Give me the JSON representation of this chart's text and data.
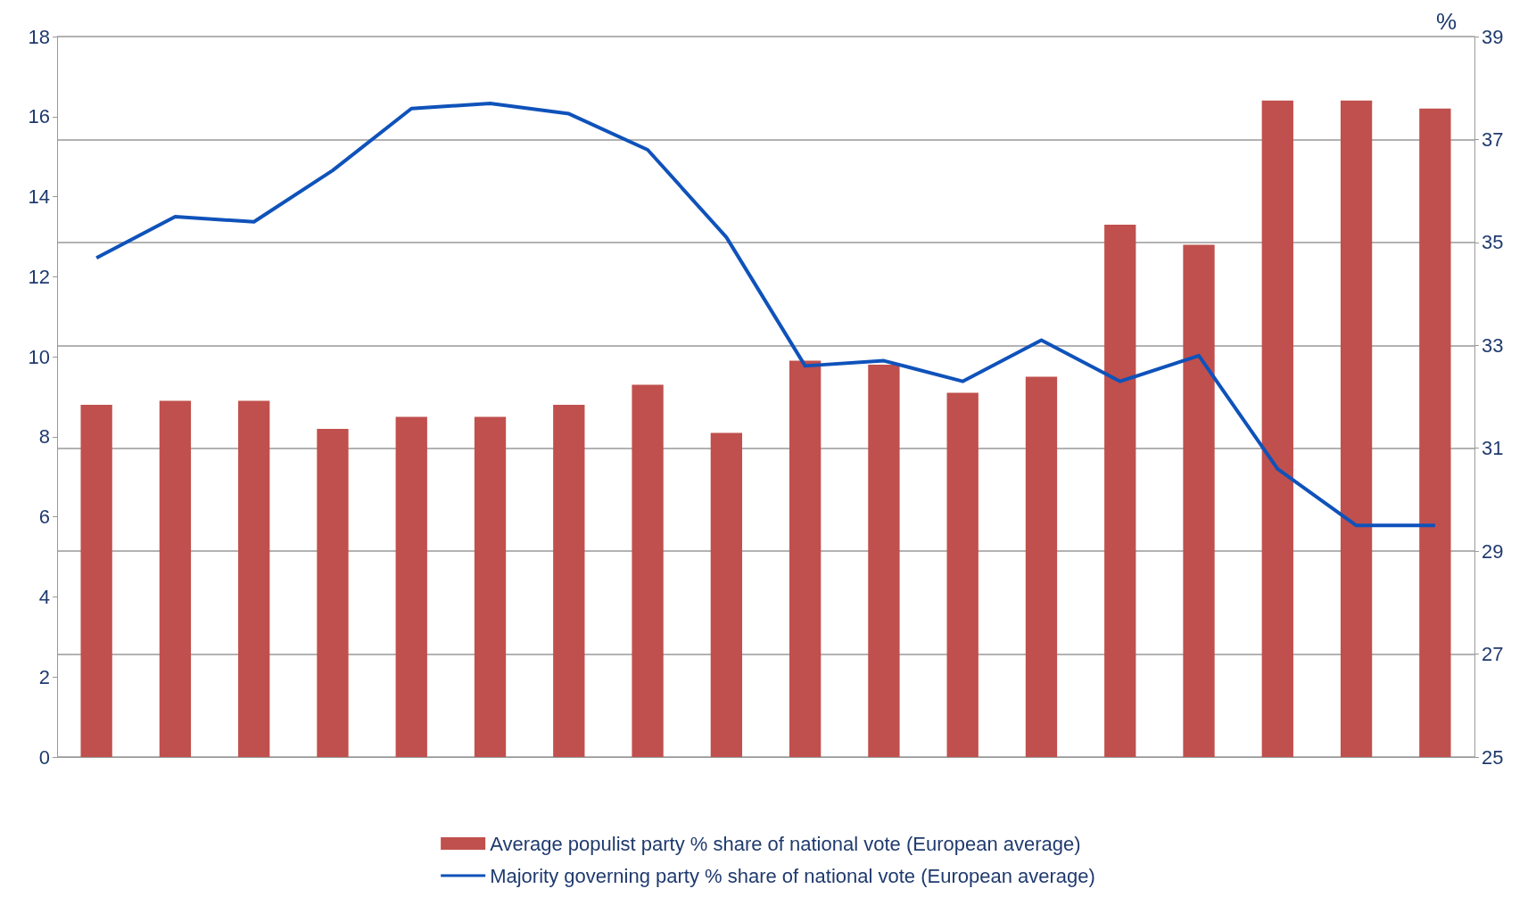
{
  "chart_data": {
    "type": "bar",
    "y2label": "%",
    "categories": [
      null,
      null,
      null,
      null,
      null,
      null,
      null,
      null,
      null,
      null,
      null,
      null,
      null,
      null,
      null,
      null,
      null,
      null
    ],
    "series": [
      {
        "name": "Average populist party % share of national vote (European average)",
        "color": "#c0504d",
        "values": [
          8.8,
          8.9,
          8.9,
          8.2,
          8.5,
          8.5,
          8.8,
          9.3,
          8.1,
          9.9,
          9.8,
          9.1,
          9.5,
          13.3,
          12.8,
          16.4,
          16.4,
          16.2
        ]
      },
      {
        "name": "Majority governing party % share of national vote (European average)",
        "type": "line",
        "axis": "y2",
        "color": "#0f52ba",
        "marker": "none",
        "values": [
          34.7,
          35.5,
          35.4,
          36.4,
          37.6,
          37.7,
          37.5,
          36.8,
          35.1,
          32.6,
          32.7,
          32.3,
          33.1,
          32.3,
          32.8,
          30.6,
          29.5,
          29.5
        ]
      }
    ],
    "ylim": [
      0,
      18
    ],
    "yticks": [
      0,
      2,
      4,
      6,
      8,
      10,
      12,
      14,
      16,
      18
    ],
    "y2lim": [
      25,
      39
    ],
    "y2ticks": [
      25,
      27,
      29,
      31,
      33,
      35,
      37,
      39
    ],
    "grid": true,
    "legend": "bottom"
  }
}
